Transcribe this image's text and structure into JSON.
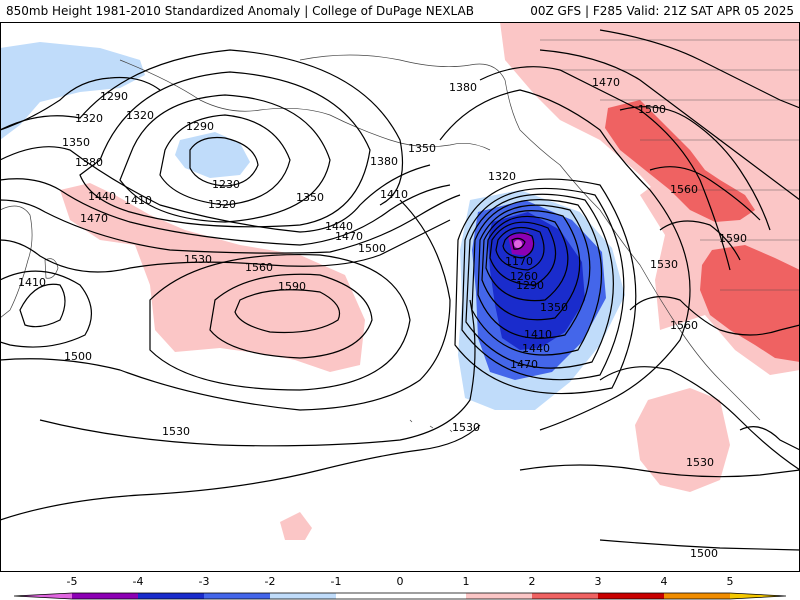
{
  "header": {
    "title_left": "850mb Height 1981-2010 Standardized Anomaly | College of DuPage NEXLAB",
    "title_right": "00Z GFS | F285 Valid: 21Z SAT APR 05 2025"
  },
  "colors": {
    "anom_neg_5": "#e066e0",
    "anom_neg_4": "#8c00b4",
    "anom_neg_3": "#1a2ccc",
    "anom_neg_2": "#4466ea",
    "anom_neg_1": "#c0dcfa",
    "anom_zero": "#ffffff",
    "anom_pos_1": "#fbc6c6",
    "anom_pos_2": "#ef6262",
    "anom_pos_3": "#c80000",
    "anom_pos_4": "#f08c00",
    "anom_pos_5": "#f4c800",
    "contour": "#000000",
    "coast": "#444444"
  },
  "contour_labels": [
    {
      "text": "1290",
      "k": "a"
    },
    {
      "text": "1320",
      "k": "b"
    },
    {
      "text": "1320",
      "k": "c"
    },
    {
      "text": "1290",
      "k": "d"
    },
    {
      "text": "1350",
      "k": "e"
    },
    {
      "text": "1380",
      "k": "f"
    },
    {
      "text": "1230",
      "k": "g"
    },
    {
      "text": "1440",
      "k": "h"
    },
    {
      "text": "1410",
      "k": "i"
    },
    {
      "text": "1470",
      "k": "j"
    },
    {
      "text": "1320",
      "k": "k"
    },
    {
      "text": "1350",
      "k": "l"
    },
    {
      "text": "1380",
      "k": "m"
    },
    {
      "text": "1350",
      "k": "n"
    },
    {
      "text": "1380",
      "k": "o"
    },
    {
      "text": "1410",
      "k": "p"
    },
    {
      "text": "1440",
      "k": "q"
    },
    {
      "text": "1470",
      "k": "r"
    },
    {
      "text": "1500",
      "k": "s"
    },
    {
      "text": "1530",
      "k": "t"
    },
    {
      "text": "1560",
      "k": "u"
    },
    {
      "text": "1590",
      "k": "v"
    },
    {
      "text": "1410",
      "k": "w"
    },
    {
      "text": "1500",
      "k": "x"
    },
    {
      "text": "1530",
      "k": "y"
    },
    {
      "text": "1530",
      "k": "z"
    },
    {
      "text": "1320",
      "k": "aa"
    },
    {
      "text": "1170",
      "k": "ab"
    },
    {
      "text": "1260",
      "k": "ac"
    },
    {
      "text": "1290",
      "k": "ad"
    },
    {
      "text": "1350",
      "k": "ae"
    },
    {
      "text": "1410",
      "k": "af"
    },
    {
      "text": "1440",
      "k": "ag"
    },
    {
      "text": "1470",
      "k": "ah"
    },
    {
      "text": "1470",
      "k": "ai"
    },
    {
      "text": "1500",
      "k": "aj"
    },
    {
      "text": "1560",
      "k": "ak"
    },
    {
      "text": "1590",
      "k": "al"
    },
    {
      "text": "1530",
      "k": "am"
    },
    {
      "text": "1560",
      "k": "an"
    },
    {
      "text": "1530",
      "k": "ao"
    },
    {
      "text": "1500",
      "k": "ap"
    }
  ],
  "legend": {
    "ticks": [
      "-5",
      "-4",
      "-3",
      "-2",
      "-1",
      "0",
      "1",
      "2",
      "3",
      "4",
      "5"
    ]
  }
}
